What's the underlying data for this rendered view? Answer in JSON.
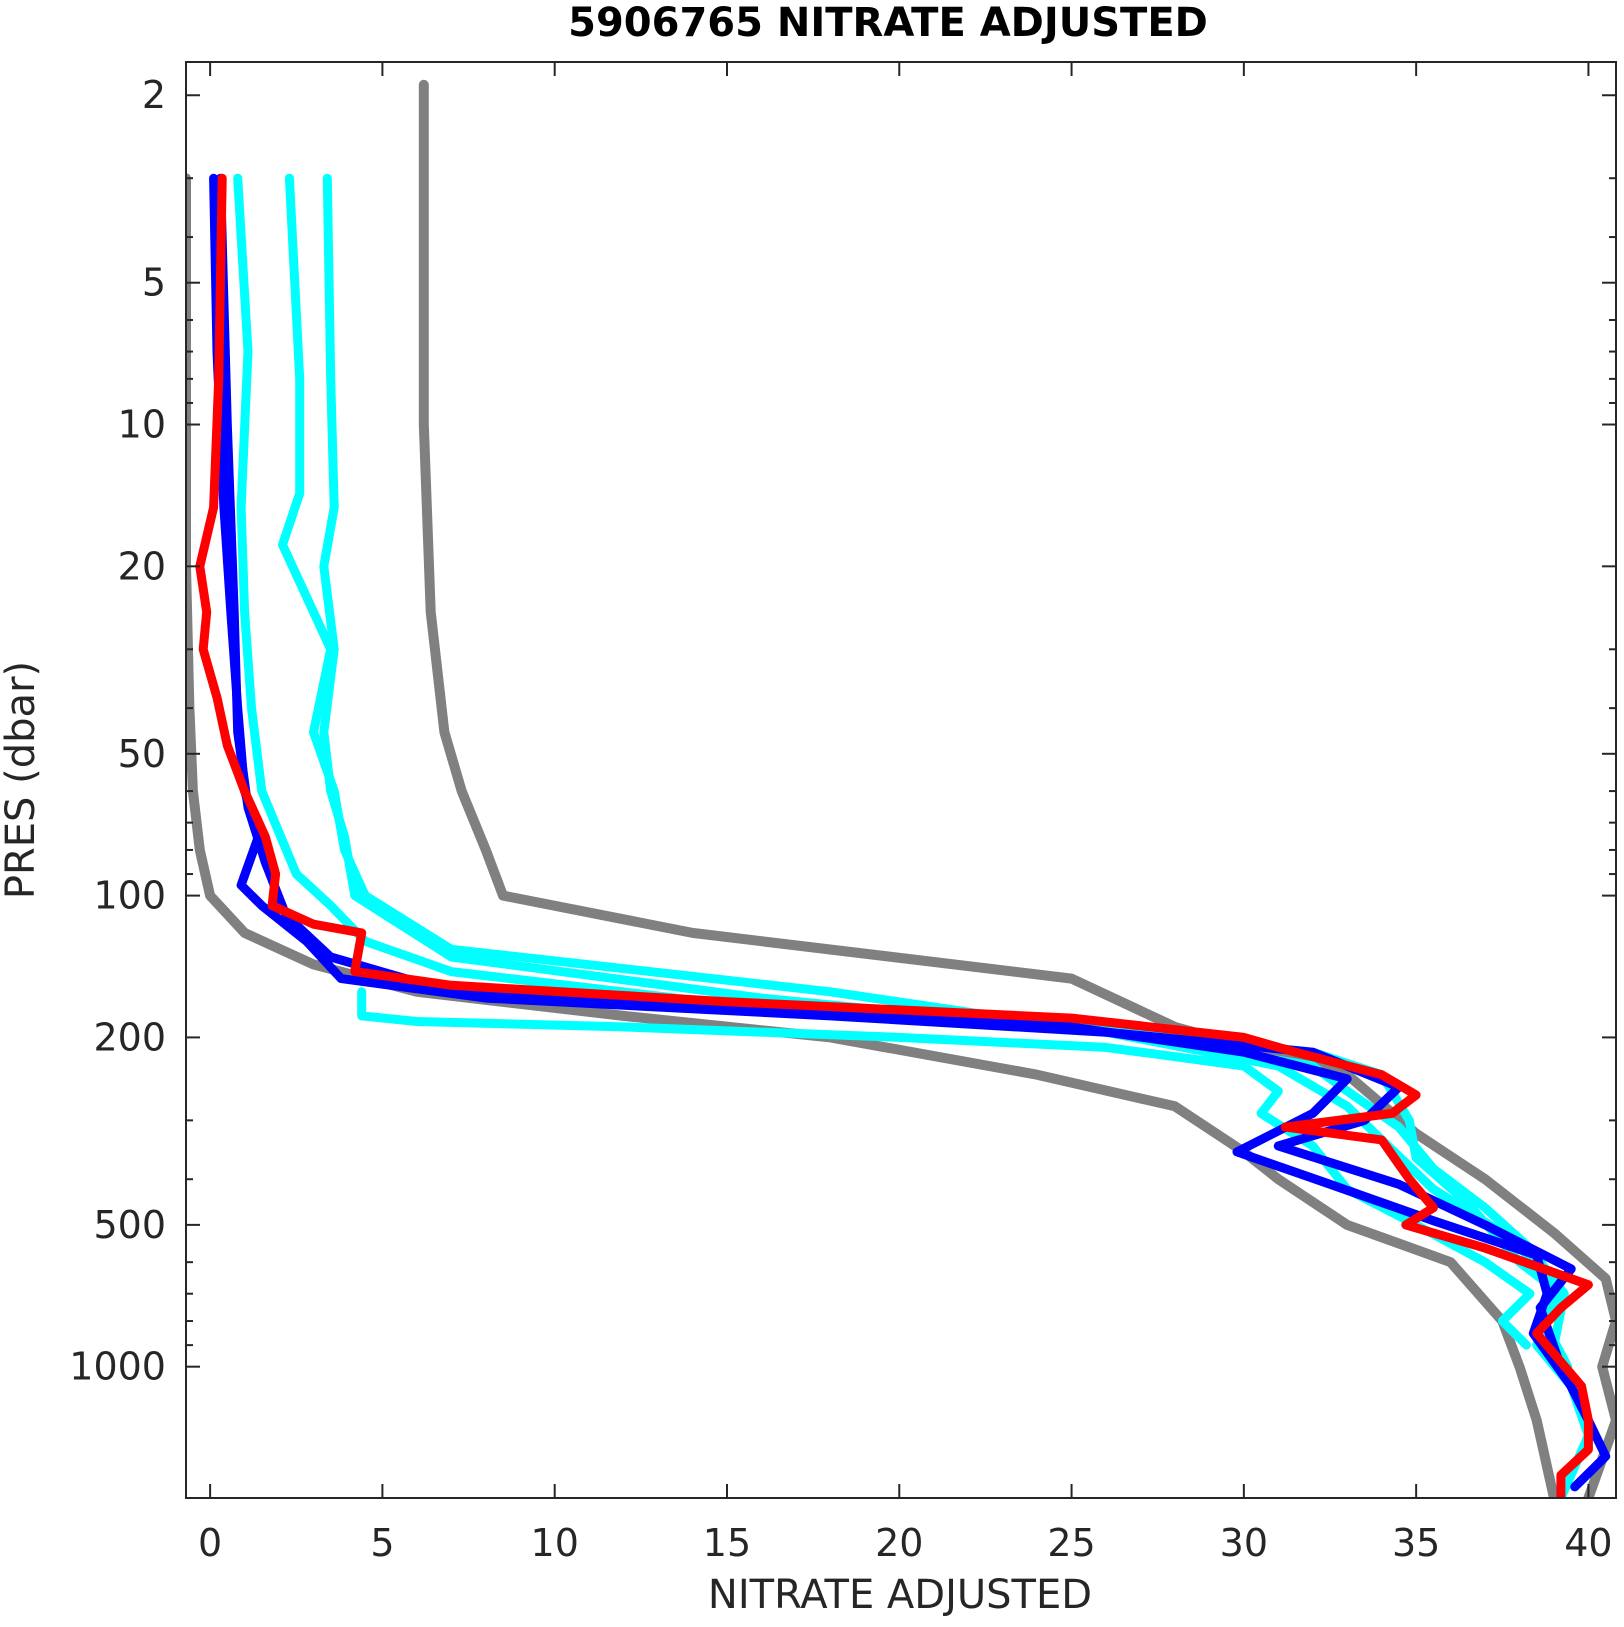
{
  "chart_data": {
    "type": "line",
    "title": "5906765  NITRATE ADJUSTED",
    "xlabel": "NITRATE ADJUSTED",
    "ylabel": "PRES (dbar)",
    "xlim": [
      -0.7,
      40.8
    ],
    "ylim": [
      1.7,
      1900
    ],
    "yscale": "log",
    "y_reversed": true,
    "xticks": [
      0,
      5,
      10,
      15,
      20,
      25,
      30,
      35,
      40
    ],
    "yticks": [
      2,
      5,
      10,
      20,
      50,
      100,
      200,
      500,
      1000
    ],
    "grid": false,
    "colors": {
      "all_profiles": "#808080",
      "recent_profiles": "#00ffff",
      "previous_profile": "#0000ff",
      "latest_profile": "#ff0000"
    },
    "series": [
      {
        "role": "gray-envelope-left",
        "color": "#808080",
        "points": [
          [
            -0.7,
            3
          ],
          [
            -0.7,
            7
          ],
          [
            -0.7,
            20
          ],
          [
            -0.6,
            40
          ],
          [
            -0.5,
            60
          ],
          [
            -0.3,
            80
          ],
          [
            0,
            100
          ],
          [
            1,
            120
          ],
          [
            3,
            140
          ],
          [
            6,
            160
          ],
          [
            12,
            180
          ],
          [
            18,
            200
          ],
          [
            24,
            240
          ],
          [
            28,
            280
          ],
          [
            30,
            350
          ],
          [
            31,
            400
          ],
          [
            33,
            500
          ],
          [
            36,
            600
          ],
          [
            37.5,
            800
          ],
          [
            38,
            1000
          ],
          [
            38.5,
            1300
          ],
          [
            39,
            1900
          ]
        ]
      },
      {
        "role": "gray-envelope-right",
        "color": "#808080",
        "points": [
          [
            6.2,
            1.9
          ],
          [
            6.2,
            10
          ],
          [
            6.4,
            25
          ],
          [
            6.8,
            45
          ],
          [
            7.3,
            60
          ],
          [
            8,
            80
          ],
          [
            8.5,
            100
          ],
          [
            14,
            120
          ],
          [
            25,
            150
          ],
          [
            28,
            190
          ],
          [
            33,
            240
          ],
          [
            35,
            320
          ],
          [
            37,
            400
          ],
          [
            39,
            520
          ],
          [
            40.5,
            650
          ],
          [
            40.8,
            800
          ],
          [
            40.4,
            1000
          ],
          [
            40.8,
            1300
          ],
          [
            40,
            1900
          ]
        ]
      },
      {
        "role": "cyan-profile-1",
        "color": "#00ffff",
        "points": [
          [
            0.8,
            3
          ],
          [
            1.1,
            7
          ],
          [
            0.9,
            15
          ],
          [
            1.0,
            25
          ],
          [
            1.2,
            40
          ],
          [
            1.5,
            60
          ],
          [
            2.5,
            90
          ],
          [
            3.5,
            105
          ],
          [
            4.5,
            125
          ],
          [
            7,
            145
          ],
          [
            15,
            170
          ],
          [
            25,
            190
          ],
          [
            32,
            215
          ],
          [
            34,
            240
          ],
          [
            34.8,
            300
          ],
          [
            35,
            360
          ],
          [
            36.5,
            450
          ],
          [
            38,
            600
          ],
          [
            39.2,
            700
          ],
          [
            38.5,
            900
          ],
          [
            39.5,
            1100
          ],
          [
            40,
            1400
          ],
          [
            39.2,
            1900
          ]
        ]
      },
      {
        "role": "cyan-profile-2",
        "color": "#00ffff",
        "points": [
          [
            2.3,
            3
          ],
          [
            2.6,
            8
          ],
          [
            2.6,
            14
          ],
          [
            2.1,
            18
          ],
          [
            3.5,
            30
          ],
          [
            3.0,
            45
          ],
          [
            3.6,
            60
          ],
          [
            3.9,
            80
          ],
          [
            4.5,
            100
          ],
          [
            7,
            130
          ],
          [
            18,
            160
          ],
          [
            27,
            200
          ],
          [
            32,
            230
          ],
          [
            33,
            260
          ],
          [
            34.5,
            310
          ],
          [
            35.5,
            380
          ],
          [
            37,
            460
          ],
          [
            38.3,
            560
          ],
          [
            39.3,
            700
          ],
          [
            39.0,
            900
          ]
        ]
      },
      {
        "role": "cyan-profile-3",
        "color": "#00ffff",
        "points": [
          [
            3.4,
            3
          ],
          [
            3.5,
            8
          ],
          [
            3.6,
            15
          ],
          [
            3.3,
            20
          ],
          [
            3.6,
            30
          ],
          [
            3.3,
            45
          ],
          [
            3.5,
            60
          ],
          [
            3.9,
            75
          ],
          [
            4.2,
            100
          ],
          [
            7,
            135
          ],
          [
            16,
            165
          ],
          [
            26,
            195
          ],
          [
            31,
            230
          ],
          [
            33,
            280
          ],
          [
            34,
            330
          ],
          [
            35.5,
            420
          ],
          [
            37.5,
            520
          ],
          [
            39,
            650
          ],
          [
            38.7,
            800
          ],
          [
            39.4,
            1000
          ]
        ]
      },
      {
        "role": "cyan-profile-4",
        "color": "#00ffff",
        "points": [
          [
            4.4,
            160
          ],
          [
            4.4,
            180
          ],
          [
            6,
            185
          ],
          [
            12,
            190
          ],
          [
            20,
            200
          ],
          [
            26,
            210
          ],
          [
            30,
            230
          ],
          [
            31,
            260
          ],
          [
            30.5,
            290
          ],
          [
            32,
            340
          ],
          [
            33,
            420
          ],
          [
            35,
            500
          ],
          [
            37,
            600
          ],
          [
            38.3,
            700
          ],
          [
            37.5,
            800
          ],
          [
            38.2,
            900
          ]
        ]
      },
      {
        "role": "blue-profile-1",
        "color": "#0000ff",
        "points": [
          [
            0.1,
            3
          ],
          [
            0.2,
            7
          ],
          [
            0.4,
            15
          ],
          [
            0.6,
            25
          ],
          [
            0.8,
            40
          ],
          [
            1.0,
            60
          ],
          [
            1.4,
            75
          ],
          [
            0.9,
            95
          ],
          [
            1.5,
            105
          ],
          [
            2.8,
            125
          ],
          [
            3.8,
            150
          ],
          [
            8,
            165
          ],
          [
            18,
            180
          ],
          [
            26,
            195
          ],
          [
            32,
            215
          ],
          [
            34.5,
            255
          ],
          [
            33.5,
            300
          ],
          [
            31,
            340
          ],
          [
            34.5,
            410
          ],
          [
            37,
            500
          ],
          [
            39.5,
            620
          ],
          [
            38.6,
            750
          ],
          [
            39.2,
            1000
          ],
          [
            40,
            1300
          ],
          [
            40.5,
            1550
          ],
          [
            39.6,
            1800
          ]
        ]
      },
      {
        "role": "blue-profile-2",
        "color": "#0000ff",
        "points": [
          [
            0.3,
            3
          ],
          [
            0.5,
            10
          ],
          [
            0.7,
            25
          ],
          [
            0.8,
            45
          ],
          [
            1.1,
            65
          ],
          [
            1.6,
            85
          ],
          [
            2.2,
            110
          ],
          [
            3.5,
            135
          ],
          [
            7,
            160
          ],
          [
            16,
            175
          ],
          [
            25,
            190
          ],
          [
            30,
            215
          ],
          [
            33,
            245
          ],
          [
            32,
            290
          ],
          [
            29.8,
            350
          ],
          [
            32.5,
            410
          ],
          [
            35.5,
            490
          ],
          [
            38.5,
            580
          ],
          [
            38.8,
            700
          ],
          [
            38.4,
            850
          ],
          [
            39.5,
            1100
          ]
        ]
      },
      {
        "role": "red-profile-latest",
        "color": "#ff0000",
        "points": [
          [
            0.35,
            3
          ],
          [
            0.25,
            8
          ],
          [
            0.1,
            15
          ],
          [
            -0.3,
            20
          ],
          [
            -0.1,
            25
          ],
          [
            -0.2,
            30
          ],
          [
            0.2,
            38
          ],
          [
            0.5,
            48
          ],
          [
            1.0,
            60
          ],
          [
            1.6,
            75
          ],
          [
            1.9,
            90
          ],
          [
            1.8,
            105
          ],
          [
            3.0,
            115
          ],
          [
            4.4,
            120
          ],
          [
            4.2,
            145
          ],
          [
            7,
            155
          ],
          [
            15,
            168
          ],
          [
            25,
            182
          ],
          [
            30,
            200
          ],
          [
            31.5,
            215
          ],
          [
            34,
            240
          ],
          [
            35,
            265
          ],
          [
            34.3,
            290
          ],
          [
            31.2,
            310
          ],
          [
            34,
            330
          ],
          [
            34.8,
            400
          ],
          [
            35.5,
            460
          ],
          [
            34.7,
            500
          ],
          [
            37,
            560
          ],
          [
            40,
            670
          ],
          [
            39.2,
            750
          ],
          [
            38.5,
            850
          ],
          [
            39.8,
            1100
          ],
          [
            40,
            1300
          ],
          [
            40,
            1500
          ],
          [
            39.2,
            1700
          ],
          [
            39.2,
            1900
          ]
        ]
      }
    ]
  }
}
